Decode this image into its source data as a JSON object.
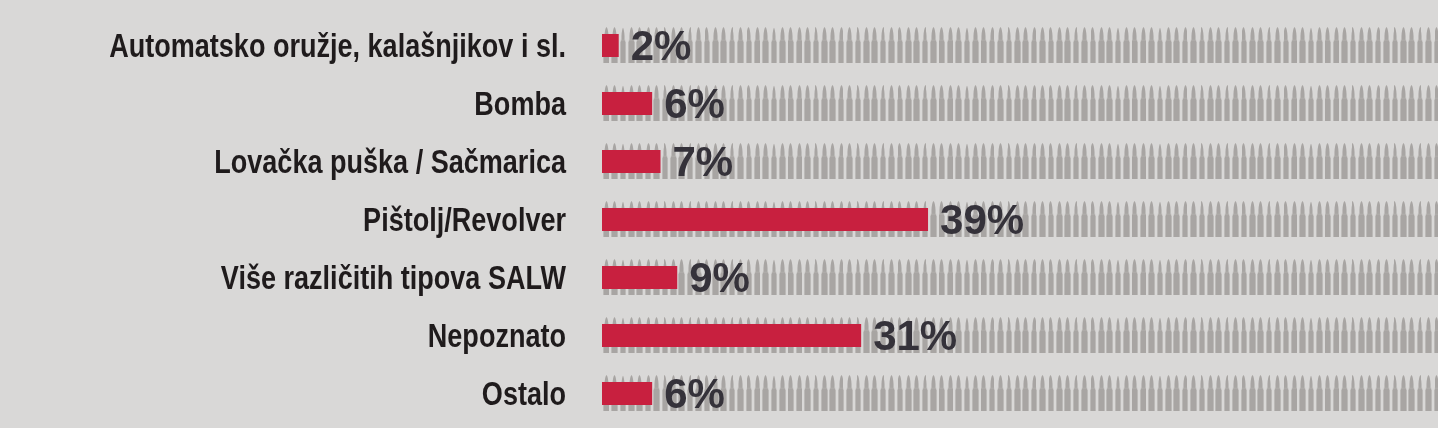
{
  "chart_data": {
    "type": "bar",
    "orientation": "horizontal",
    "categories": [
      "Automatsko oružje, kalašnjikov i sl.",
      "Bomba",
      "Lovačka puška / Sačmarica",
      "Pištolj/Revolver",
      "Više različitih tipova SALW",
      "Nepoznato",
      "Ostalo"
    ],
    "values": [
      2,
      6,
      7,
      39,
      9,
      31,
      6
    ],
    "value_labels": [
      "2%",
      "6%",
      "7%",
      "39%",
      "9%",
      "31%",
      "6%"
    ],
    "color": "#c8203f",
    "xlim": [
      0,
      100
    ],
    "tick_labels": "y"
  }
}
